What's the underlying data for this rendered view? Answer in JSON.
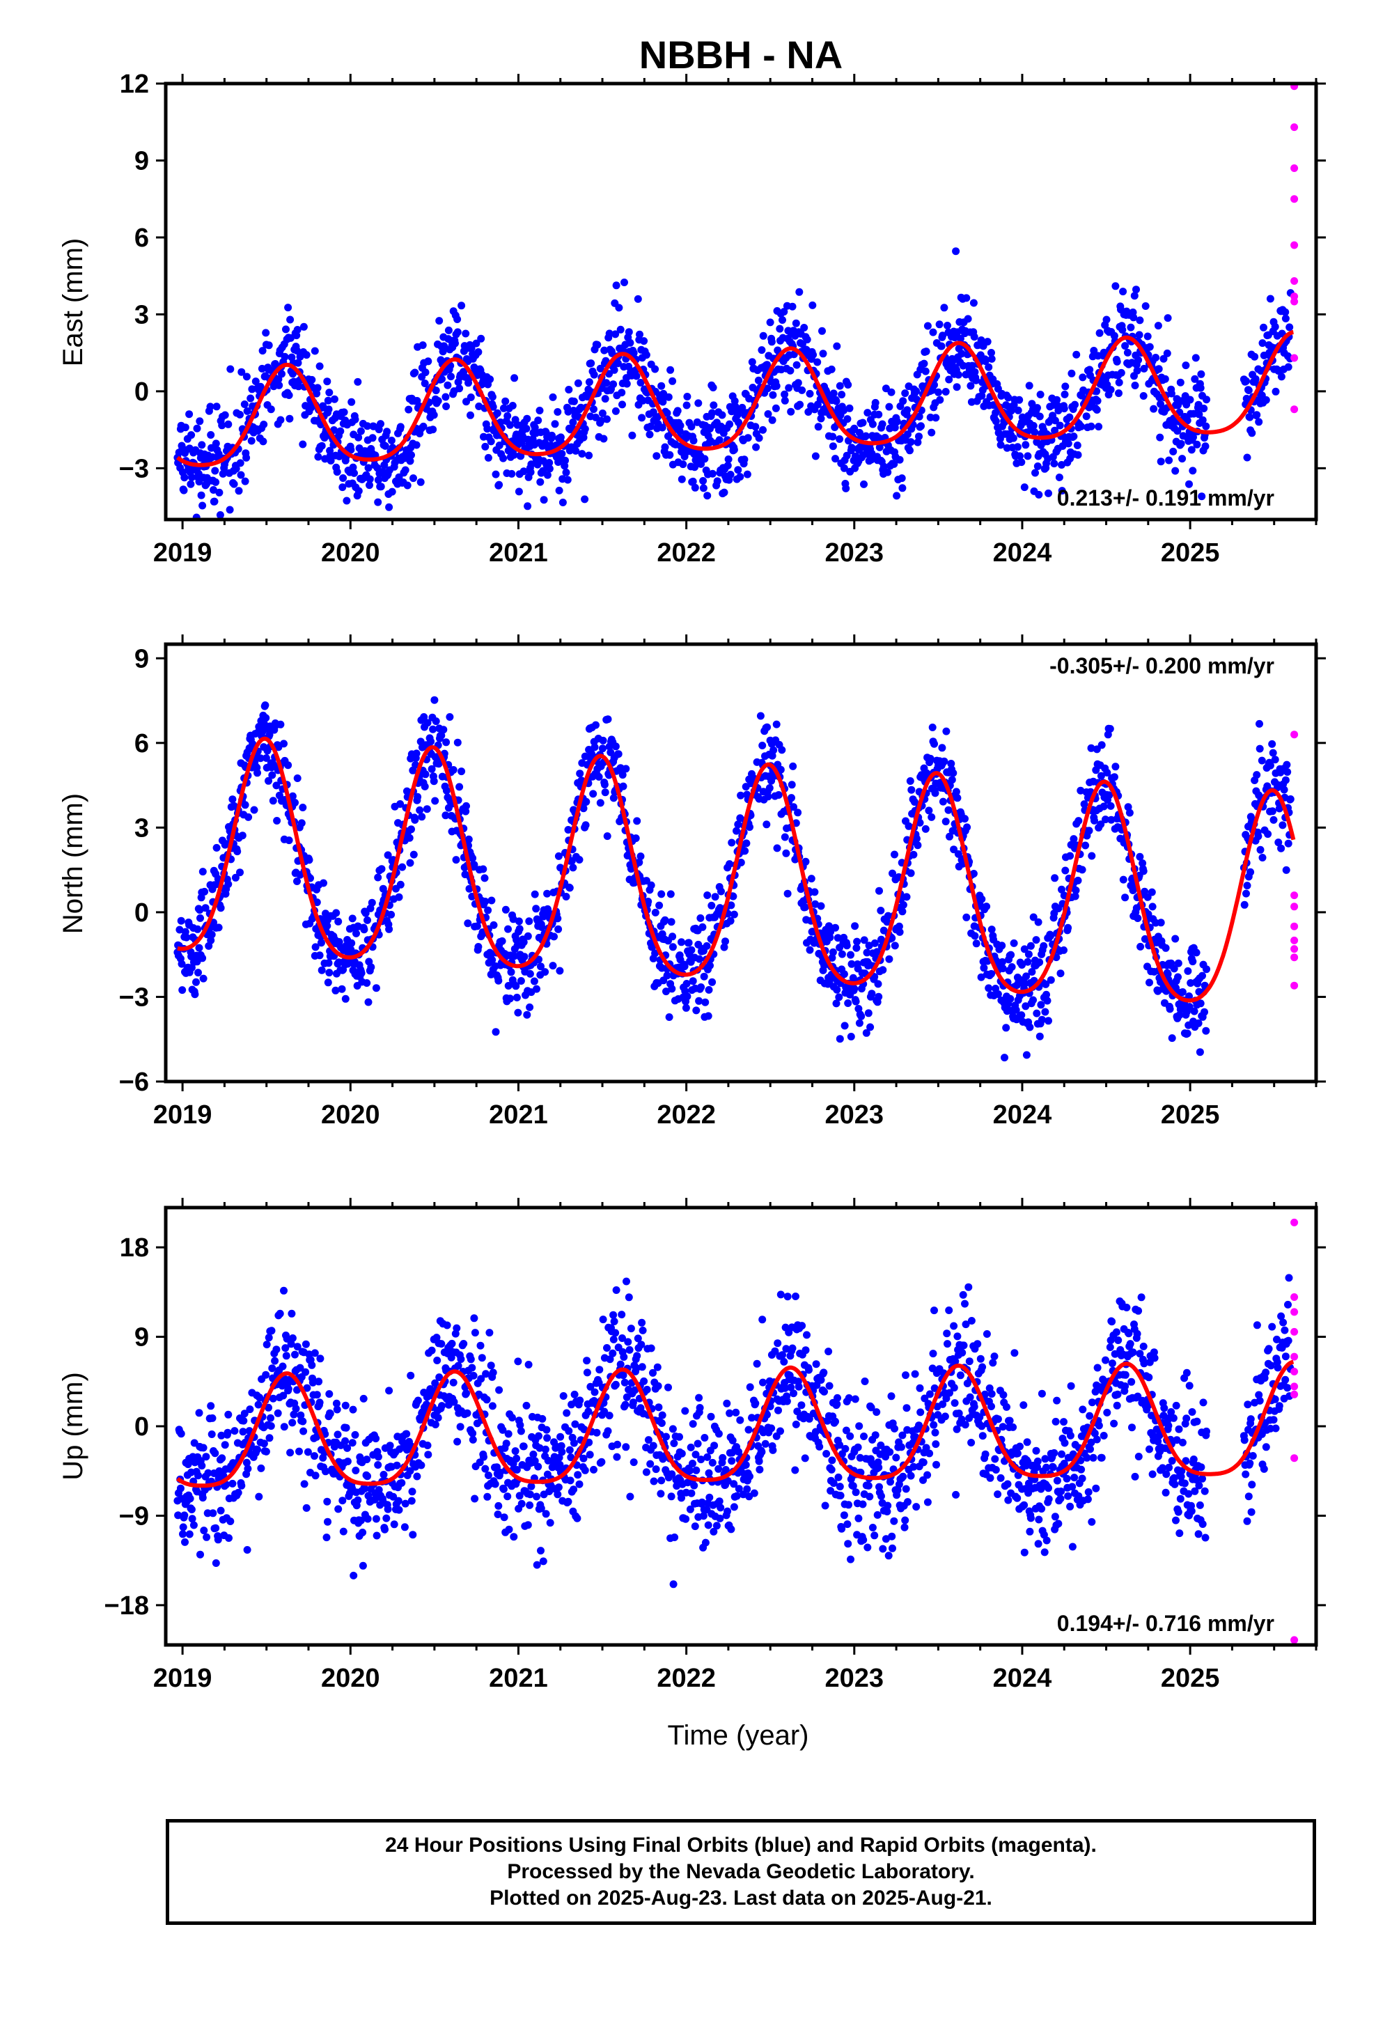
{
  "title": "NBBH - NA",
  "x_axis_label": "Time (year)",
  "colors": {
    "final": "#0000ff",
    "rapid": "#ff00ff",
    "model": "#ff0000"
  },
  "note": {
    "line1": "24 Hour Positions Using Final Orbits (blue) and Rapid Orbits (magenta).",
    "line2": "Processed by the Nevada Geodetic Laboratory.",
    "line3": "Plotted on 2025-Aug-23. Last data on 2025-Aug-21."
  },
  "chart_data": [
    {
      "type": "scatter",
      "component": "east",
      "ylabel": "East (mm)",
      "ylim": [
        -5,
        12
      ],
      "yticks": [
        -3,
        0,
        3,
        6,
        9,
        12
      ],
      "xlim": [
        2018.9,
        2025.75
      ],
      "xticks": [
        2019,
        2020,
        2021,
        2022,
        2023,
        2024,
        2025
      ],
      "rate": "0.213+/- 0.191 mm/yr",
      "rate_position": "bottom-right",
      "seasonal": {
        "amplitude": 1.9,
        "peak_phase": 0.62,
        "trend": 0.213,
        "offset": -1.35,
        "semiannual": 0.35
      },
      "scatter_sigma": 1.0,
      "rapid_points": [
        [
          2025.62,
          11.9
        ],
        [
          2025.62,
          10.3
        ],
        [
          2025.62,
          8.7
        ],
        [
          2025.62,
          7.5
        ],
        [
          2025.62,
          5.7
        ],
        [
          2025.62,
          4.3
        ],
        [
          2025.62,
          3.7
        ],
        [
          2025.62,
          3.5
        ],
        [
          2025.62,
          1.3
        ],
        [
          2025.62,
          -0.7
        ]
      ]
    },
    {
      "type": "scatter",
      "component": "north",
      "ylabel": "North (mm)",
      "ylim": [
        -6,
        9.5
      ],
      "yticks": [
        -6,
        -3,
        0,
        3,
        6,
        9
      ],
      "xlim": [
        2018.9,
        2025.75
      ],
      "xticks": [
        2019,
        2020,
        2021,
        2022,
        2023,
        2024,
        2025
      ],
      "rate": "-0.305+/- 0.200 mm/yr",
      "rate_position": "top-right",
      "seasonal": {
        "amplitude": 3.8,
        "peak_phase": 0.49,
        "trend": -0.305,
        "offset": 1.9,
        "semiannual": 0.6
      },
      "scatter_sigma": 0.9,
      "rapid_points": [
        [
          2025.62,
          6.3
        ],
        [
          2025.62,
          0.6
        ],
        [
          2025.62,
          0.2
        ],
        [
          2025.62,
          -0.5
        ],
        [
          2025.62,
          -1.0
        ],
        [
          2025.62,
          -1.3
        ],
        [
          2025.62,
          -1.6
        ],
        [
          2025.62,
          -2.6
        ]
      ]
    },
    {
      "type": "scatter",
      "component": "up",
      "ylabel": "Up (mm)",
      "ylim": [
        -22,
        22
      ],
      "yticks": [
        -18,
        -9,
        0,
        9,
        18
      ],
      "xlim": [
        2018.9,
        2025.75
      ],
      "xticks": [
        2019,
        2020,
        2021,
        2022,
        2023,
        2024,
        2025
      ],
      "rate": "0.194+/- 0.716 mm/yr",
      "rate_position": "bottom-right",
      "seasonal": {
        "amplitude": 5.6,
        "peak_phase": 0.62,
        "trend": 0.194,
        "offset": -1.6,
        "semiannual": 1.2
      },
      "scatter_sigma": 3.6,
      "rapid_points": [
        [
          2025.62,
          20.5
        ],
        [
          2025.62,
          13.0
        ],
        [
          2025.62,
          11.5
        ],
        [
          2025.62,
          9.5
        ],
        [
          2025.62,
          7.0
        ],
        [
          2025.62,
          5.5
        ],
        [
          2025.62,
          4.0
        ],
        [
          2025.62,
          3.2
        ],
        [
          2025.62,
          -3.2
        ],
        [
          2025.62,
          -21.5
        ]
      ]
    }
  ]
}
